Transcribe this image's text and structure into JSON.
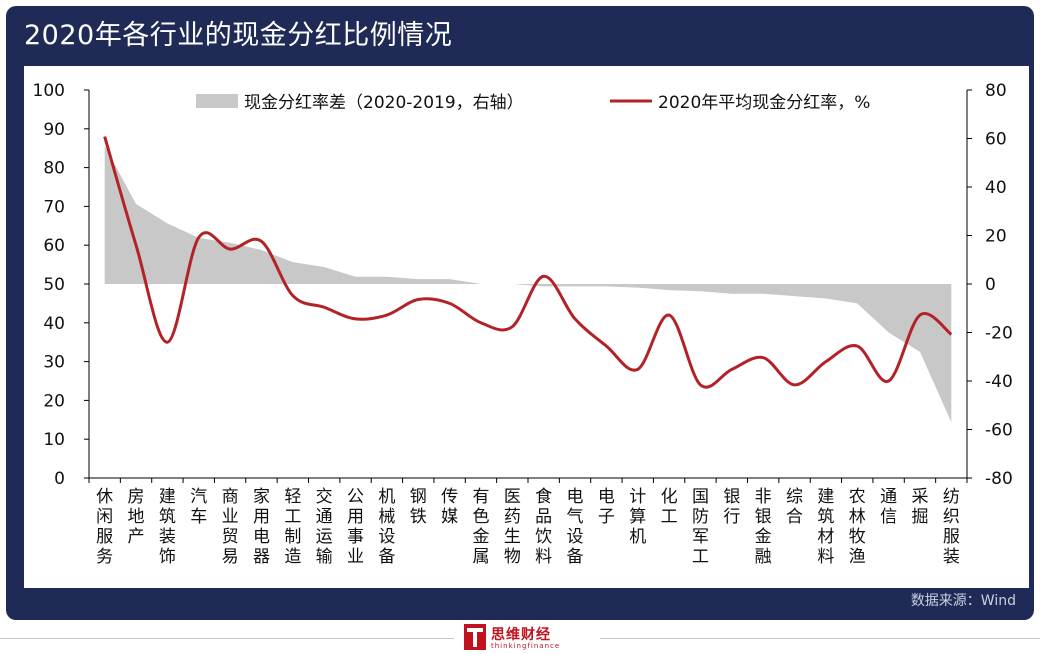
{
  "title": "2020年各行业的现金分红比例情况",
  "source": "数据来源：Wind",
  "brand": {
    "name": "思维财经",
    "sub": "thinkingfinance"
  },
  "colors": {
    "frame": "#1f2b56",
    "area": "#c8c8c8",
    "line": "#b22226",
    "accent": "#c1121f"
  },
  "chart_data": {
    "type": "line",
    "categories": [
      "休闲服务",
      "房地产",
      "建筑装饰",
      "汽车",
      "商业贸易",
      "家用电器",
      "轻工制造",
      "交通运输",
      "公用事业",
      "机械设备",
      "钢铁",
      "传媒",
      "有色金属",
      "医药生物",
      "食品饮料",
      "电气设备",
      "电子",
      "计算机",
      "化工",
      "国防军工",
      "银行",
      "非银金融",
      "综合",
      "建筑材料",
      "农林牧渔",
      "通信",
      "采掘",
      "纺织服装"
    ],
    "series": [
      {
        "name": "现金分红率差（2020-2019，右轴）",
        "type": "area",
        "axis": "right",
        "values": [
          57,
          33,
          25,
          19,
          17,
          14,
          9,
          7,
          3,
          3,
          2,
          2,
          0,
          0,
          -1,
          -1,
          -1,
          -1.5,
          -2.5,
          -3,
          -4,
          -4,
          -5,
          -6,
          -8,
          -20,
          -28,
          -57
        ]
      },
      {
        "name": "2020年平均现金分红率，%",
        "type": "line",
        "axis": "left",
        "values": [
          88,
          60,
          35,
          62,
          59,
          61,
          47,
          44,
          41,
          42,
          46,
          45,
          40,
          39,
          52,
          41,
          34,
          28,
          42,
          24,
          28,
          31,
          24,
          30,
          34,
          25,
          42,
          37
        ]
      }
    ],
    "ylim_left": [
      0,
      100
    ],
    "yticks_left": [
      0,
      10,
      20,
      30,
      40,
      50,
      60,
      70,
      80,
      90,
      100
    ],
    "ylim_right": [
      -80,
      80
    ],
    "yticks_right": [
      -80,
      -60,
      -40,
      -20,
      0,
      20,
      40,
      60,
      80
    ],
    "legend": "top",
    "grid": false
  }
}
